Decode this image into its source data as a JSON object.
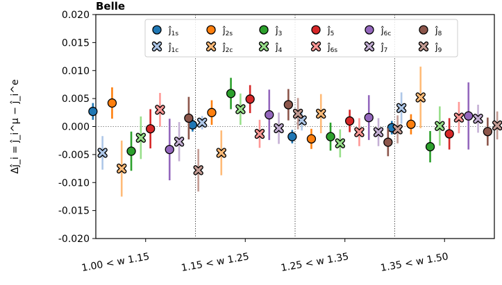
{
  "chart_data": {
    "type": "scatter",
    "title": "Belle",
    "ylabel": "Δĵ_i = ĵ_i^μ − ĵ_i^e",
    "xlabel": "",
    "ylim": [
      -0.02,
      0.02
    ],
    "yticks": [
      "0.020",
      "0.015",
      "0.010",
      "0.005",
      "0.000",
      "-0.005",
      "-0.010",
      "-0.015",
      "-0.020"
    ],
    "ytick_values": [
      0.02,
      0.015,
      0.01,
      0.005,
      0.0,
      -0.005,
      -0.01,
      -0.015,
      -0.02
    ],
    "categories": [
      "1.00 < w 1.15",
      "1.15 < w 1.25",
      "1.25 < w 1.35",
      "1.35 < w 1.50"
    ],
    "grid": false,
    "legend_position": "top",
    "series": [
      {
        "name": "ĵ_1s",
        "label_base": "ĵ",
        "label_sub": "1s",
        "marker": "circle",
        "color": "#1f77b4",
        "values": [
          0.0027,
          0.0003,
          -0.0018,
          -0.0002
        ],
        "errors": [
          0.0015,
          0.0012,
          0.0012,
          0.0012
        ]
      },
      {
        "name": "ĵ_1c",
        "label_base": "ĵ",
        "label_sub": "1c",
        "marker": "x",
        "color": "#aec7e8",
        "values": [
          -0.0047,
          0.0007,
          0.0011,
          0.0033
        ],
        "errors": [
          0.003,
          0.0012,
          0.0018,
          0.0028
        ]
      },
      {
        "name": "ĵ_2s",
        "label_base": "ĵ",
        "label_sub": "2s",
        "marker": "circle",
        "color": "#ff7f0e",
        "values": [
          0.0042,
          0.0025,
          -0.0022,
          0.0004
        ],
        "errors": [
          0.0028,
          0.0022,
          0.0018,
          0.0018
        ]
      },
      {
        "name": "ĵ_2c",
        "label_base": "ĵ",
        "label_sub": "2c",
        "marker": "x",
        "color": "#ffbb78",
        "values": [
          -0.0075,
          -0.0047,
          0.0023,
          0.0052
        ],
        "errors": [
          0.005,
          0.004,
          0.0035,
          0.0055
        ]
      },
      {
        "name": "ĵ_3",
        "label_base": "ĵ",
        "label_sub": "3",
        "marker": "circle",
        "color": "#2ca02c",
        "values": [
          -0.0044,
          0.0059,
          -0.0018,
          -0.0036
        ],
        "errors": [
          0.0035,
          0.0028,
          0.0025,
          0.0028
        ]
      },
      {
        "name": "ĵ_4",
        "label_base": "ĵ",
        "label_sub": "4",
        "marker": "x",
        "color": "#98df8a",
        "values": [
          -0.002,
          0.0031,
          -0.003,
          0.0001
        ],
        "errors": [
          0.0038,
          0.0028,
          0.0025,
          0.0035
        ]
      },
      {
        "name": "ĵ_5",
        "label_base": "ĵ",
        "label_sub": "5",
        "marker": "circle",
        "color": "#d62728",
        "values": [
          -0.0004,
          0.0049,
          0.001,
          -0.0013
        ],
        "errors": [
          0.0035,
          0.0025,
          0.002,
          0.0028
        ]
      },
      {
        "name": "ĵ_6s",
        "label_base": "ĵ",
        "label_sub": "6s",
        "marker": "x",
        "color": "#ff9896",
        "values": [
          0.003,
          -0.0013,
          -0.001,
          0.0016
        ],
        "errors": [
          0.003,
          0.0025,
          0.0025,
          0.0028
        ]
      },
      {
        "name": "ĵ_6c",
        "label_base": "ĵ",
        "label_sub": "6c",
        "marker": "circle",
        "color": "#9467bd",
        "values": [
          -0.0041,
          0.0021,
          0.0016,
          0.0019
        ],
        "errors": [
          0.0055,
          0.0045,
          0.004,
          0.006
        ]
      },
      {
        "name": "ĵ_7",
        "label_base": "ĵ",
        "label_sub": "7",
        "marker": "x",
        "color": "#c5b0d5",
        "values": [
          -0.0027,
          -0.0003,
          -0.001,
          0.0014
        ],
        "errors": [
          0.0035,
          0.0028,
          0.0025,
          0.0025
        ]
      },
      {
        "name": "ĵ_8",
        "label_base": "ĵ",
        "label_sub": "8",
        "marker": "circle",
        "color": "#8c564b",
        "values": [
          0.0015,
          0.0039,
          -0.0028,
          -0.0009
        ],
        "errors": [
          0.0038,
          0.0028,
          0.0025,
          0.0025
        ]
      },
      {
        "name": "ĵ_9",
        "label_base": "ĵ",
        "label_sub": "9",
        "marker": "x",
        "color": "#c49c94",
        "values": [
          -0.0078,
          0.0023,
          -0.0005,
          0.0002
        ],
        "errors": [
          0.0038,
          0.0028,
          0.0025,
          0.0025
        ]
      }
    ]
  }
}
